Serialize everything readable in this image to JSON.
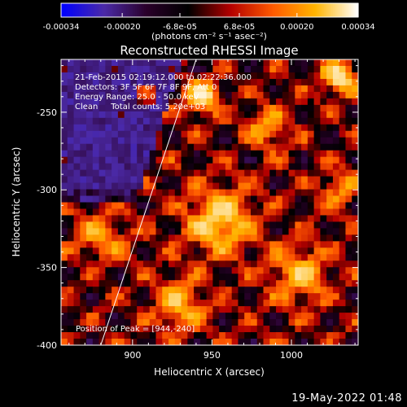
{
  "window": {
    "timestamp": "19-May-2022 01:48"
  },
  "colorbar": {
    "tick_labels": [
      "-0.00034",
      "-0.00020",
      "-6.8e-05",
      "6.8e-05",
      "0.00020",
      "0.00034"
    ],
    "tick_values": [
      -0.00034,
      -0.0002,
      -6.8e-05,
      6.8e-05,
      0.0002,
      0.00034
    ],
    "range": [
      -0.00034,
      0.00034
    ],
    "units_label": "(photons cm⁻² s⁻¹ asec⁻²)",
    "colormap": [
      "#0000ff",
      "#4b2aa8",
      "#2a002a",
      "#000000",
      "#b40000",
      "#ff5a00",
      "#ffb400",
      "#ffffff"
    ]
  },
  "chart_data": {
    "type": "heatmap",
    "title": "Reconstructed RHESSI Image",
    "xlabel": "Heliocentric X (arcsec)",
    "ylabel": "Heliocentric Y (arcsec)",
    "xlim": [
      855,
      1042
    ],
    "ylim": [
      -400,
      -216
    ],
    "x_ticks": [
      900,
      950,
      1000
    ],
    "y_ticks": [
      -250,
      -300,
      -350,
      -400
    ],
    "annotations": [
      "21-Feb-2015 02:19:12.000 to 02:22:36.000",
      "Detectors: 3F 5F 6F 7F 8F 9F, Att 0",
      "Energy Range: 25.0 - 50.0 keV",
      "Clean     Total counts: 5.20e+03"
    ],
    "peak_label": "Position of Peak = [944,-240]",
    "peak_position": [
      944,
      -240
    ],
    "limb_line": [
      [
        880,
        -400
      ],
      [
        940,
        -216
      ]
    ]
  }
}
